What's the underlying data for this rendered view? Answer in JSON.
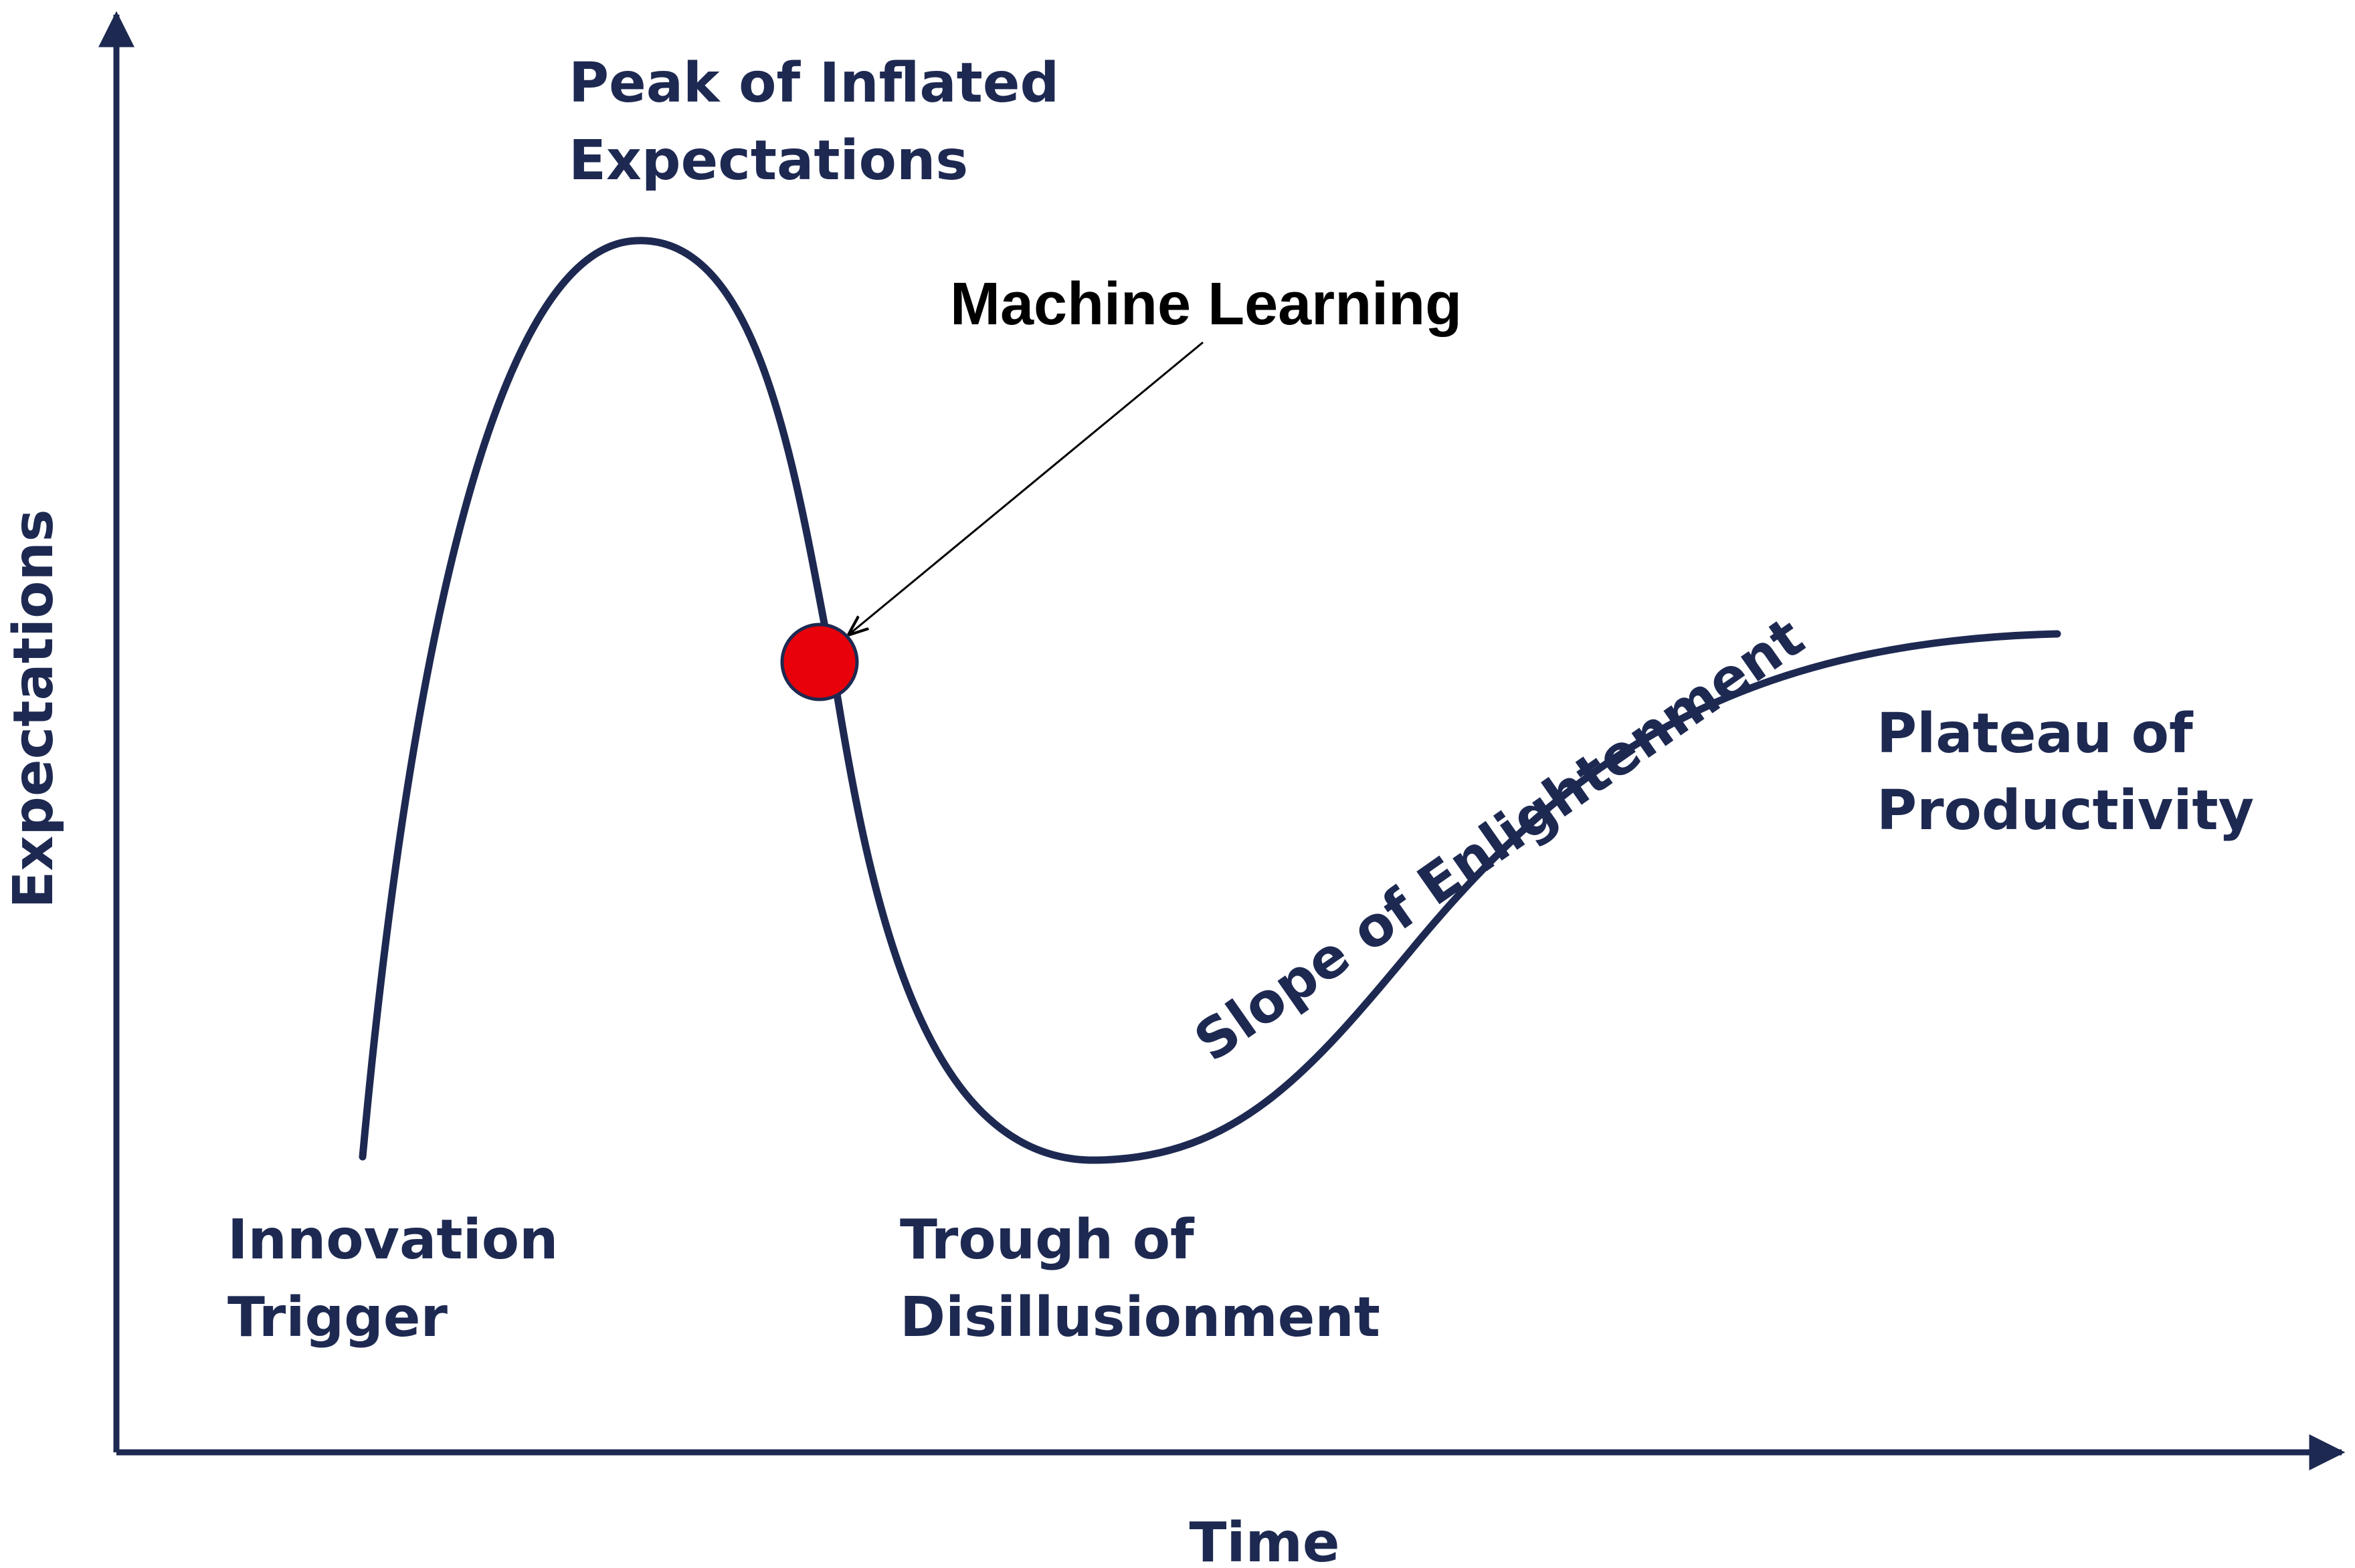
{
  "diagram": {
    "type": "hype-cycle",
    "axes": {
      "x_label": "Time",
      "y_label": "Expectations"
    },
    "phases": [
      {
        "id": "innovation-trigger",
        "lines": [
          "Innovation",
          "Trigger"
        ]
      },
      {
        "id": "peak",
        "lines": [
          "Peak of Inflated",
          "Expectations"
        ]
      },
      {
        "id": "trough",
        "lines": [
          "Trough of",
          "Disillusionment"
        ]
      },
      {
        "id": "slope",
        "lines": [
          "Slope of Enlightenment"
        ]
      },
      {
        "id": "plateau",
        "lines": [
          "Plateau of",
          "Productivity"
        ]
      }
    ],
    "callout": {
      "label": "Machine Learning",
      "marker_color": "#e8000b",
      "position_phase": "sliding into the Trough of Disillusionment"
    },
    "colors": {
      "curve": "#1d2951",
      "text": "#1d2951",
      "marker": "#e8000b",
      "callout_text": "#000000"
    }
  }
}
